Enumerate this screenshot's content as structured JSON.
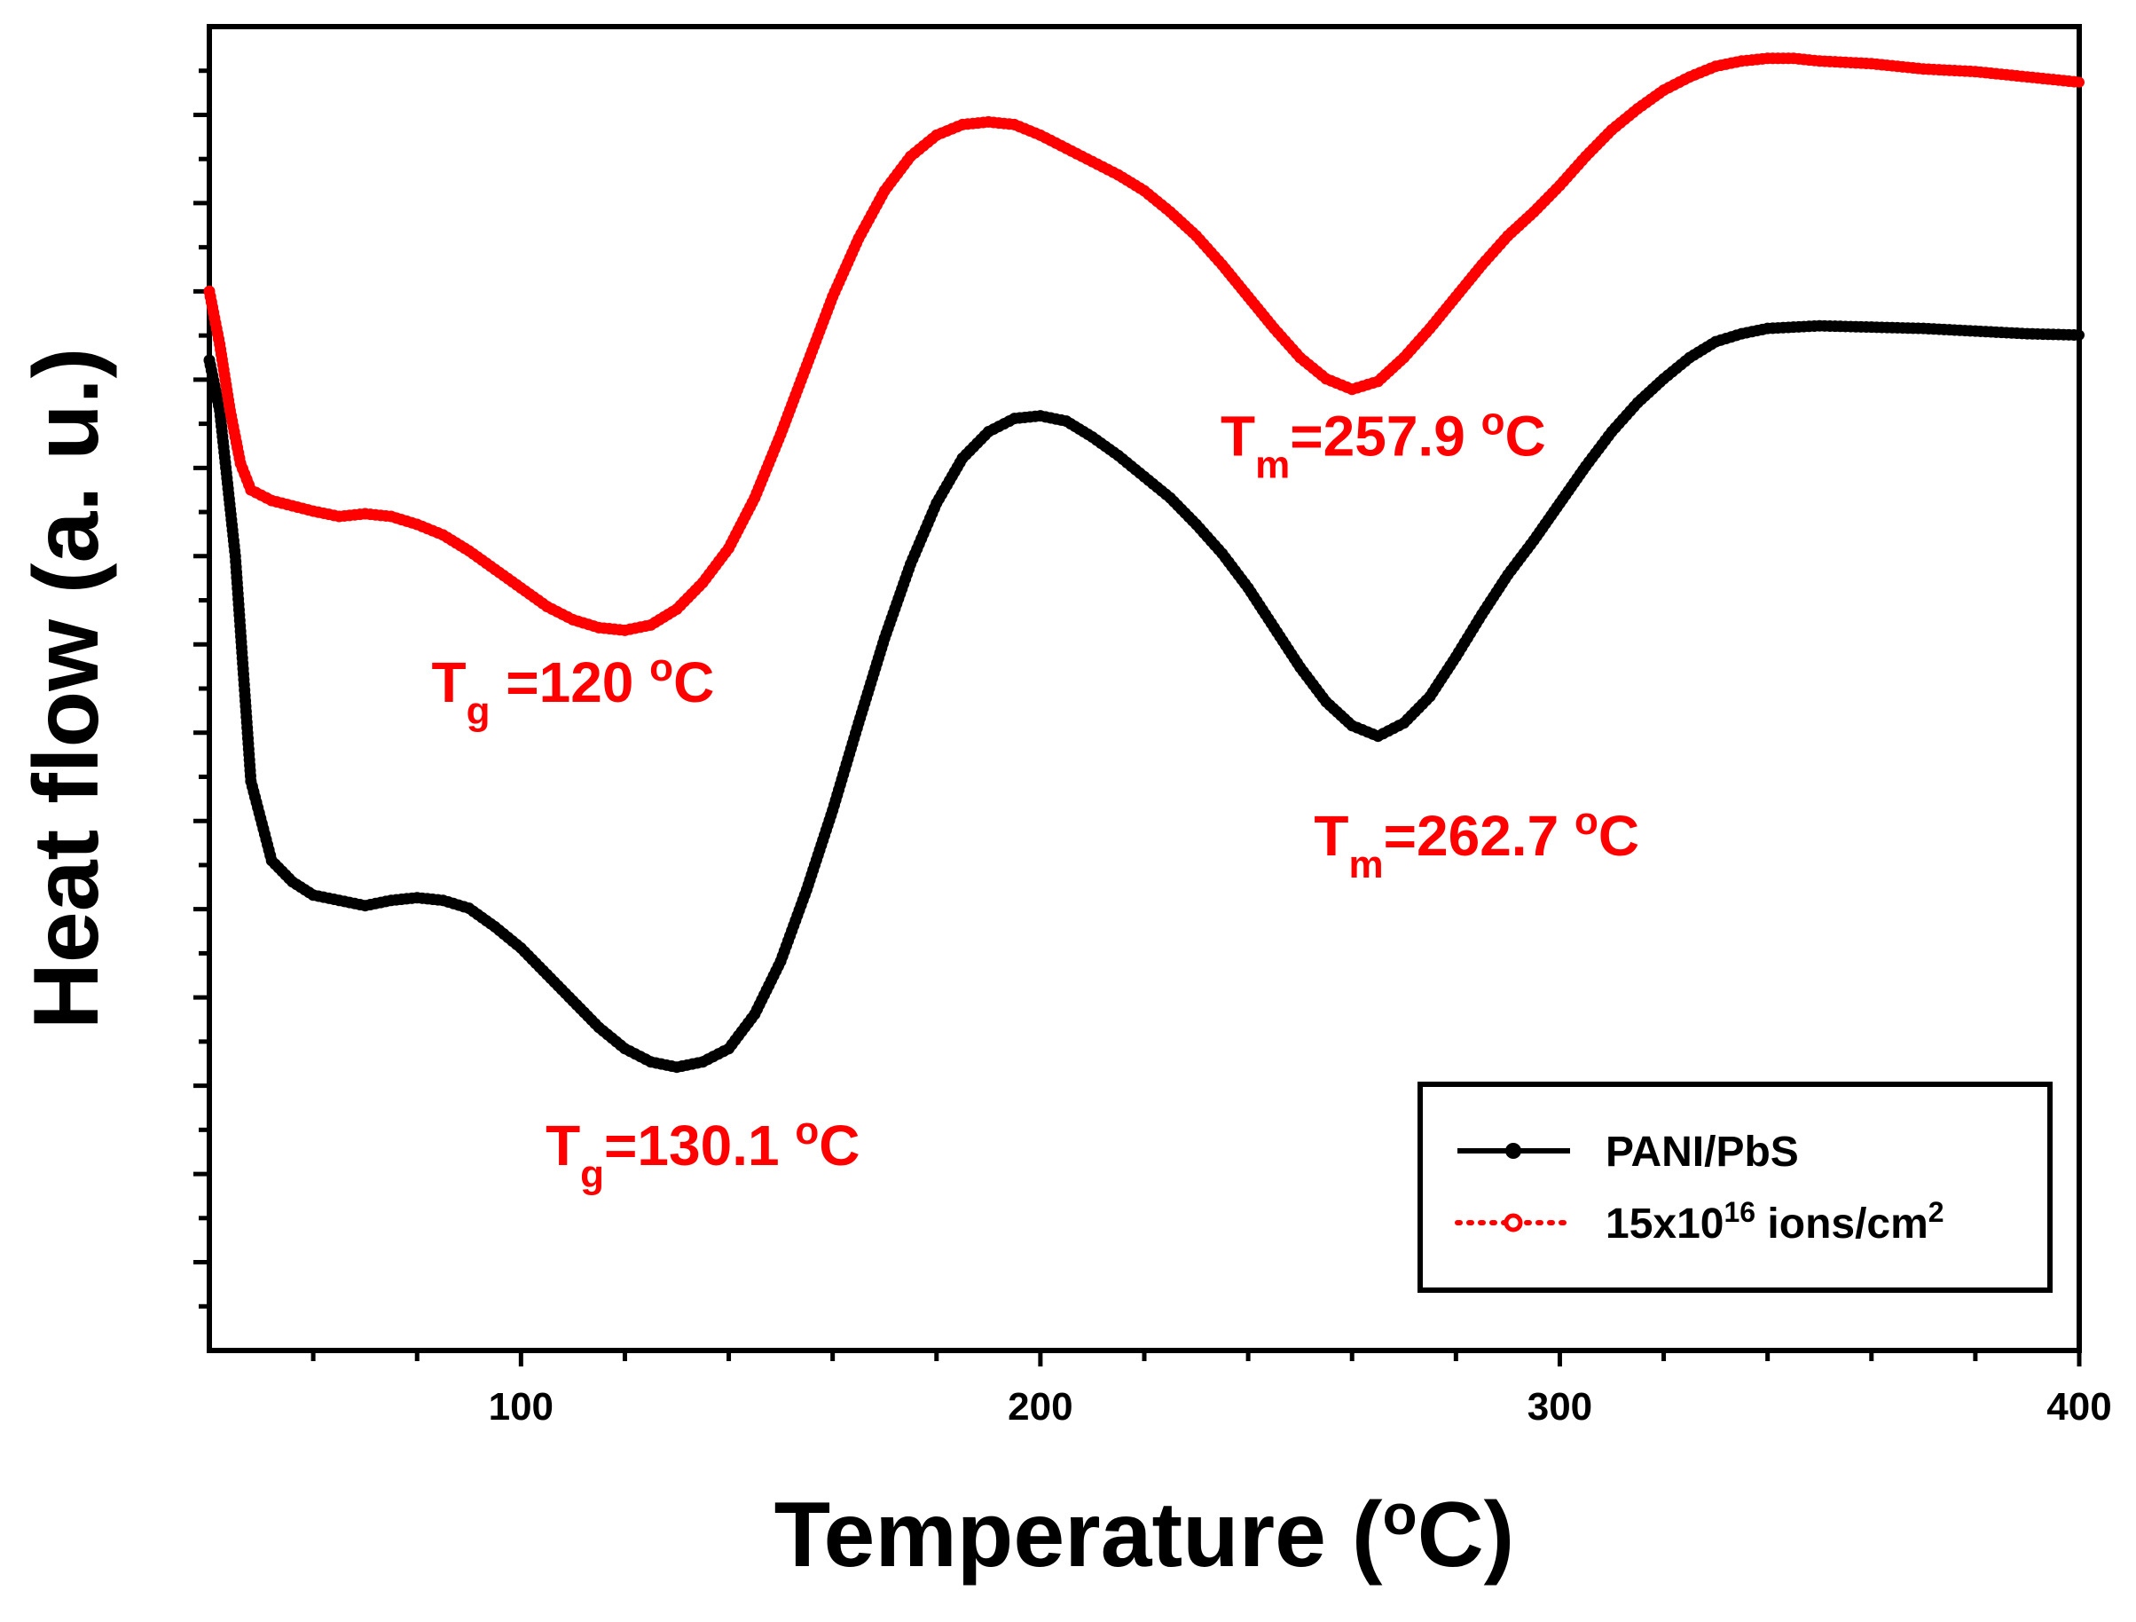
{
  "chart_data": {
    "type": "line",
    "xlabel": {
      "main": "Temperature (",
      "sup": "o",
      "tail": "C)"
    },
    "ylabel": "Heat flow (a. u.)",
    "xlim": [
      40,
      400
    ],
    "x_ticks": [
      100,
      200,
      300,
      400
    ],
    "y_ticks_labeled": false,
    "grid": false,
    "legend_position": "bottom-right",
    "series": [
      {
        "name": "PANI/PbS",
        "color": "#000000",
        "style": "solid-line-circle",
        "points": [
          [
            40,
            0.6
          ],
          [
            42,
            2.5
          ],
          [
            45,
            8.0
          ],
          [
            48,
            16.5
          ],
          [
            52,
            19.5
          ],
          [
            56,
            20.3
          ],
          [
            60,
            20.8
          ],
          [
            65,
            21.0
          ],
          [
            70,
            21.2
          ],
          [
            75,
            21.0
          ],
          [
            80,
            20.9
          ],
          [
            85,
            21.0
          ],
          [
            90,
            21.3
          ],
          [
            95,
            22.0
          ],
          [
            100,
            22.8
          ],
          [
            105,
            23.8
          ],
          [
            110,
            24.8
          ],
          [
            115,
            25.8
          ],
          [
            120,
            26.6
          ],
          [
            125,
            27.1
          ],
          [
            130,
            27.3
          ],
          [
            135,
            27.1
          ],
          [
            140,
            26.6
          ],
          [
            145,
            25.3
          ],
          [
            150,
            23.3
          ],
          [
            155,
            20.6
          ],
          [
            160,
            17.6
          ],
          [
            165,
            14.3
          ],
          [
            170,
            11.1
          ],
          [
            175,
            8.3
          ],
          [
            180,
            6.0
          ],
          [
            185,
            4.3
          ],
          [
            190,
            3.3
          ],
          [
            195,
            2.8
          ],
          [
            200,
            2.7
          ],
          [
            205,
            2.9
          ],
          [
            210,
            3.5
          ],
          [
            215,
            4.2
          ],
          [
            220,
            5.0
          ],
          [
            225,
            5.8
          ],
          [
            230,
            6.8
          ],
          [
            235,
            7.9
          ],
          [
            240,
            9.2
          ],
          [
            245,
            10.7
          ],
          [
            250,
            12.2
          ],
          [
            255,
            13.5
          ],
          [
            260,
            14.4
          ],
          [
            265,
            14.8
          ],
          [
            270,
            14.3
          ],
          [
            275,
            13.3
          ],
          [
            280,
            11.8
          ],
          [
            285,
            10.2
          ],
          [
            290,
            8.7
          ],
          [
            295,
            7.4
          ],
          [
            300,
            6.0
          ],
          [
            305,
            4.6
          ],
          [
            310,
            3.3
          ],
          [
            315,
            2.2
          ],
          [
            320,
            1.3
          ],
          [
            325,
            0.5
          ],
          [
            330,
            -0.1
          ],
          [
            335,
            -0.4
          ],
          [
            340,
            -0.6
          ],
          [
            350,
            -0.7
          ],
          [
            360,
            -0.65
          ],
          [
            370,
            -0.6
          ],
          [
            380,
            -0.5
          ],
          [
            390,
            -0.4
          ],
          [
            400,
            -0.35
          ]
        ]
      },
      {
        "name": "15x10",
        "name_sup": "16",
        "name_tail": " ions/cm",
        "name_tail_sup": "2",
        "color": "#ff0000",
        "style": "dotted-line-circle",
        "points": [
          [
            40,
            -2.0
          ],
          [
            42,
            0.0
          ],
          [
            44,
            2.5
          ],
          [
            46,
            4.5
          ],
          [
            48,
            5.5
          ],
          [
            52,
            5.9
          ],
          [
            56,
            6.1
          ],
          [
            60,
            6.3
          ],
          [
            65,
            6.5
          ],
          [
            70,
            6.4
          ],
          [
            75,
            6.5
          ],
          [
            80,
            6.8
          ],
          [
            85,
            7.2
          ],
          [
            90,
            7.8
          ],
          [
            95,
            8.5
          ],
          [
            100,
            9.2
          ],
          [
            105,
            9.9
          ],
          [
            110,
            10.4
          ],
          [
            115,
            10.7
          ],
          [
            120,
            10.8
          ],
          [
            125,
            10.6
          ],
          [
            130,
            10.0
          ],
          [
            135,
            9.0
          ],
          [
            140,
            7.7
          ],
          [
            145,
            5.8
          ],
          [
            150,
            3.4
          ],
          [
            155,
            0.8
          ],
          [
            160,
            -1.8
          ],
          [
            165,
            -4.0
          ],
          [
            170,
            -5.8
          ],
          [
            175,
            -7.1
          ],
          [
            180,
            -7.9
          ],
          [
            185,
            -8.3
          ],
          [
            190,
            -8.4
          ],
          [
            195,
            -8.3
          ],
          [
            200,
            -7.9
          ],
          [
            205,
            -7.4
          ],
          [
            210,
            -6.9
          ],
          [
            215,
            -6.4
          ],
          [
            220,
            -5.8
          ],
          [
            225,
            -5.0
          ],
          [
            230,
            -4.1
          ],
          [
            235,
            -3.0
          ],
          [
            240,
            -1.8
          ],
          [
            245,
            -0.6
          ],
          [
            250,
            0.5
          ],
          [
            255,
            1.3
          ],
          [
            260,
            1.7
          ],
          [
            265,
            1.4
          ],
          [
            270,
            0.5
          ],
          [
            275,
            -0.6
          ],
          [
            280,
            -1.8
          ],
          [
            285,
            -3.0
          ],
          [
            290,
            -4.1
          ],
          [
            295,
            -5.0
          ],
          [
            300,
            -6.0
          ],
          [
            305,
            -7.1
          ],
          [
            310,
            -8.1
          ],
          [
            315,
            -8.9
          ],
          [
            320,
            -9.6
          ],
          [
            325,
            -10.1
          ],
          [
            330,
            -10.5
          ],
          [
            335,
            -10.7
          ],
          [
            340,
            -10.8
          ],
          [
            345,
            -10.8
          ],
          [
            350,
            -10.7
          ],
          [
            360,
            -10.6
          ],
          [
            370,
            -10.4
          ],
          [
            380,
            -10.3
          ],
          [
            390,
            -10.1
          ],
          [
            400,
            -9.9
          ]
        ]
      }
    ],
    "annotations": [
      {
        "id": "tg_red",
        "color": "#ff0000",
        "main": "T",
        "sub": "g",
        "rest": " =120 ",
        "sup": "o",
        "tail": "C",
        "x": 110,
        "y": 13.5
      },
      {
        "id": "tm_red",
        "color": "#ff0000",
        "main": "T",
        "sub": "m",
        "rest": "=257.9 ",
        "sup": "o",
        "tail": "C",
        "x": 266,
        "y": 4.2
      },
      {
        "id": "tg_black",
        "color": "#ff0000",
        "main": "T",
        "sub": "g",
        "rest": "=130.1 ",
        "sup": "o",
        "tail": "C",
        "x": 135,
        "y": 31.0
      },
      {
        "id": "tm_black",
        "color": "#ff0000",
        "main": "T",
        "sub": "m",
        "rest": "=262.7 ",
        "sup": "o",
        "tail": "C",
        "x": 284,
        "y": 19.3
      }
    ]
  }
}
